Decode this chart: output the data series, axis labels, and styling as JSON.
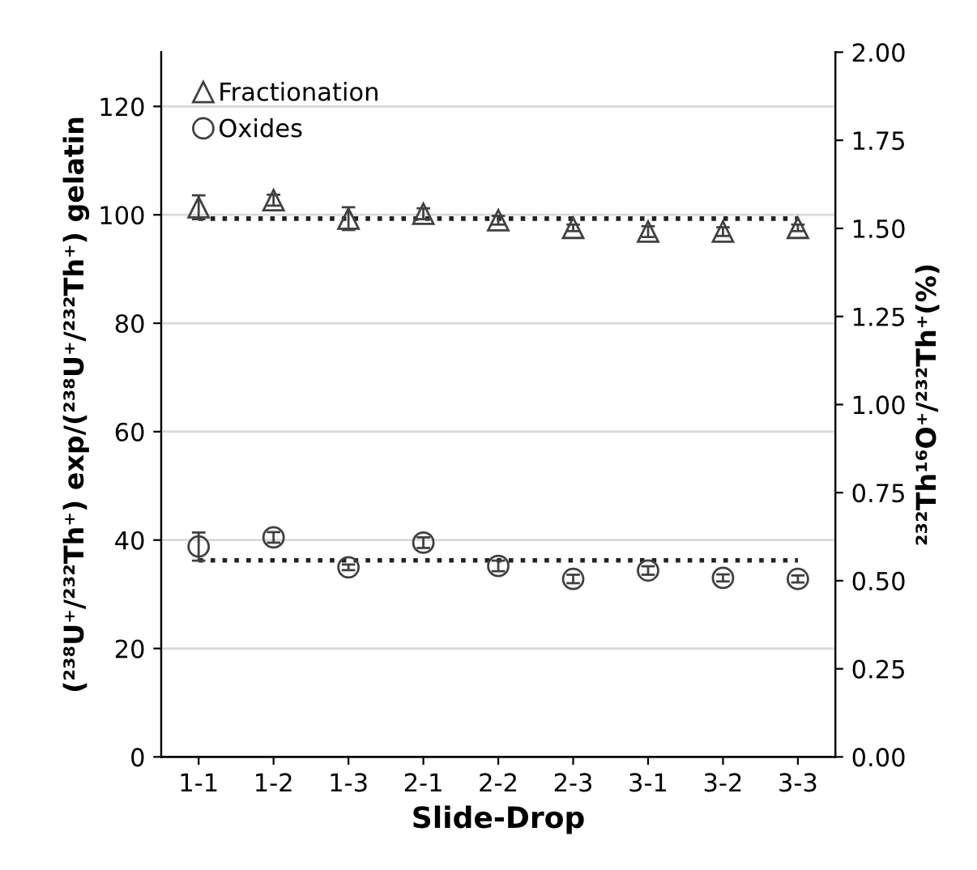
{
  "chart_data": {
    "type": "scatter",
    "xlabel": "Slide-Drop",
    "ylabel": "(²³⁸U⁺/²³²Th⁺) exp/(²³⁸U⁺/²³²Th⁺) gelatin",
    "y2label": "²³²Th¹⁶O⁺/²³²Th⁺(%)",
    "categories": [
      "1-1",
      "1-2",
      "1-3",
      "2-1",
      "2-2",
      "2-3",
      "3-1",
      "3-2",
      "3-3"
    ],
    "series": [
      {
        "name": "Fractionation",
        "color": "#404040",
        "marker": "triangle",
        "values": [
          101.4,
          102.7,
          99.3,
          100.2,
          99.0,
          97.6,
          96.9,
          96.9,
          97.6
        ],
        "errors": [
          2.2,
          1.0,
          2.1,
          1.0,
          0.8,
          0.6,
          1.0,
          0.8,
          0.6
        ]
      },
      {
        "name": "Oxides",
        "color": "#404040",
        "marker": "circle",
        "axis": "y2",
        "values": [
          0.597,
          0.623,
          0.538,
          0.608,
          0.542,
          0.505,
          0.529,
          0.508,
          0.505
        ],
        "errors": [
          0.04,
          0.015,
          0.008,
          0.015,
          0.015,
          0.012,
          0.012,
          0.01,
          0.01
        ]
      }
    ],
    "ref_lines": [
      {
        "axis": "y",
        "value": 99.3,
        "line_style": "dotted",
        "color": "#222222"
      },
      {
        "axis": "y2",
        "value": 0.558,
        "line_style": "dotted",
        "color": "#222222"
      }
    ],
    "ylim": [
      0,
      130
    ],
    "yticks": [
      0,
      20,
      40,
      60,
      80,
      100,
      120
    ],
    "y2lim": [
      0,
      2
    ],
    "y2ticks": [
      {
        "value": 0,
        "label": "0.00"
      },
      {
        "value": 0.25,
        "label": "0.25"
      },
      {
        "value": 0.5,
        "label": "0.50"
      },
      {
        "value": 0.75,
        "label": "0.75"
      },
      {
        "value": 1,
        "label": "1.00"
      },
      {
        "value": 1.25,
        "label": "1.25"
      },
      {
        "value": 1.5,
        "label": "1.50"
      },
      {
        "value": 1.75,
        "label": "1.75"
      },
      {
        "value": 2,
        "label": "2.00"
      }
    ],
    "grid": "y",
    "legend": "top left"
  }
}
